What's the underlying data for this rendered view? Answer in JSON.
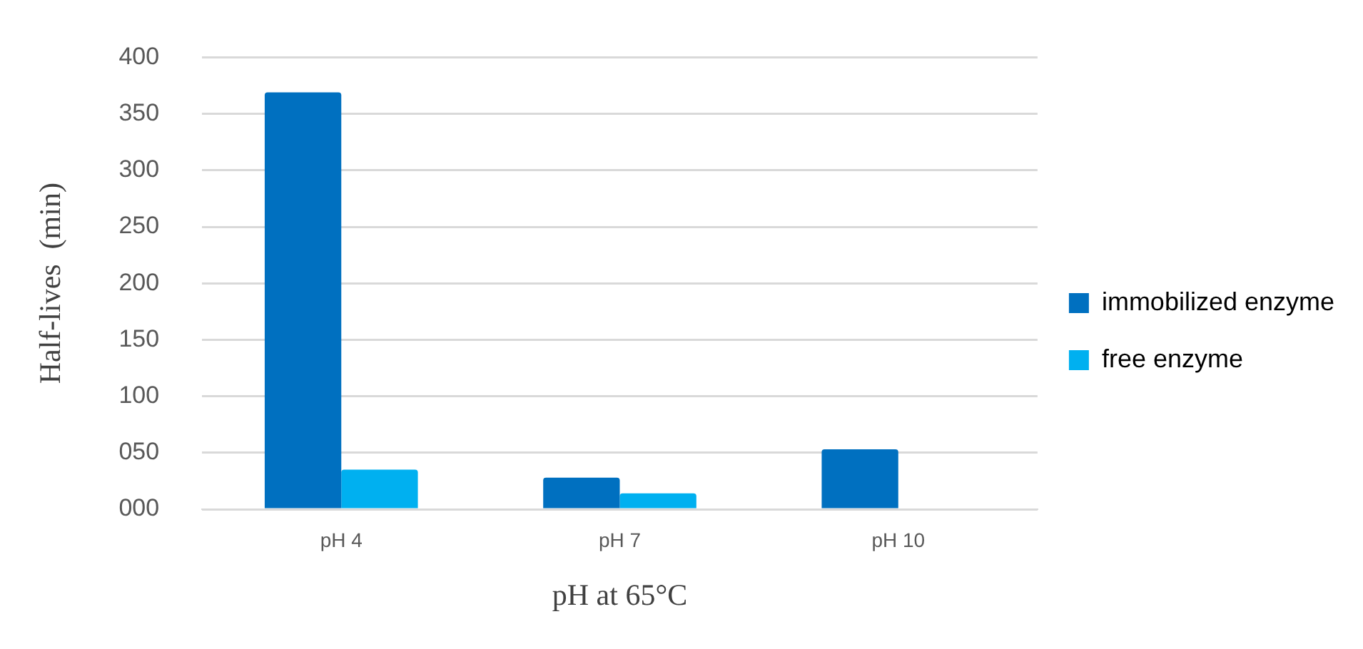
{
  "chart_data": {
    "type": "bar",
    "xlabel": "pH at 65°C",
    "ylabel": "Half-lives  (min)",
    "categories": [
      "pH 4",
      "pH 7",
      "pH 10"
    ],
    "series": [
      {
        "name": "immobilized enzyme",
        "color": "#0070c0",
        "values": [
          369,
          28,
          53
        ]
      },
      {
        "name": "free enzyme",
        "color": "#00b0f0",
        "values": [
          35,
          14,
          null
        ]
      }
    ],
    "ylim": [
      0,
      400
    ],
    "yticks": [
      {
        "value": 0,
        "label": "000"
      },
      {
        "value": 50,
        "label": "050"
      },
      100,
      150,
      200,
      250,
      300,
      350,
      400
    ],
    "grid": "y",
    "legend": "right"
  }
}
